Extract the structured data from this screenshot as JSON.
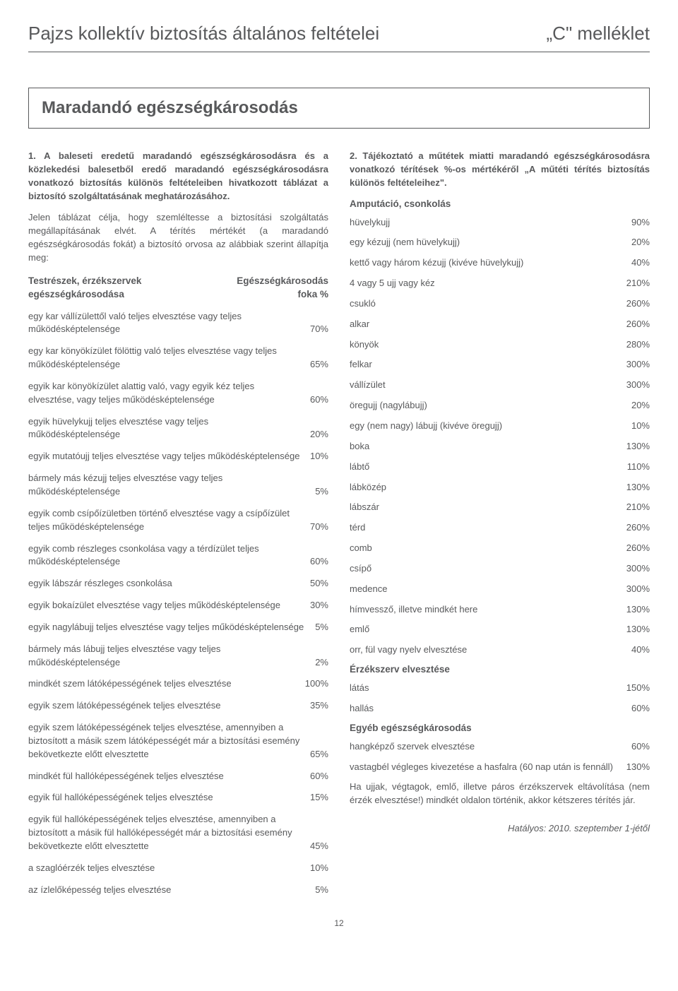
{
  "header": {
    "title": "Pajzs kollektív biztosítás általános feltételei",
    "annex": "„C\" melléklet"
  },
  "section_heading": "Maradandó egészségkárosodás",
  "left": {
    "lead": "1.  A baleseti eredetű maradandó egészségkárosodásra és a közlekedési balesetből eredő maradandó egészségkárosodásra vonatkozó biztosítás különös feltételeiben hivatkozott táblázat a biztosító szolgáltatásának meghatározásához.",
    "para": "Jelen táblázat célja, hogy szemléltesse a biztosítási szolgáltatás megállapításának elvét. A térítés mértékét (a maradandó egészségkárosodás fokát) a biztosító orvosa az alábbiak szerint állapítja meg:",
    "table_header": {
      "left1": "Testrészek, érzékszervek",
      "left2": "egészségkárosodása",
      "right1": "Egészségkárosodás",
      "right2": "foka %"
    },
    "items": [
      {
        "label": "egy kar vállízülettől való teljes elvesztése vagy teljes működésképtelensége",
        "value": "70%"
      },
      {
        "label": "egy kar könyökízület fölöttig való teljes elvesztése vagy teljes működésképtelensége",
        "value": "65%"
      },
      {
        "label": "egyik kar könyökízület alattig való, vagy egyik kéz teljes elvesztése, vagy teljes működésképtelensége",
        "value": "60%"
      },
      {
        "label": "egyik hüvelykujj teljes elvesztése vagy teljes működésképtelensége",
        "value": "20%"
      },
      {
        "label": "egyik mutatóujj teljes elvesztése vagy teljes működésképtelensége",
        "value": "10%"
      },
      {
        "label": "bármely más kézujj teljes elvesztése vagy teljes működésképtelensége",
        "value": "5%"
      },
      {
        "label": "egyik comb csípőízületben történő elvesztése vagy a csípőízület teljes működésképtelensége",
        "value": "70%"
      },
      {
        "label": "egyik comb részleges csonkolása vagy a térdízület teljes működésképtelensége",
        "value": "60%"
      },
      {
        "label": "egyik lábszár részleges csonkolása",
        "value": "50%"
      },
      {
        "label": "egyik bokaízület elvesztése vagy teljes működésképtelensége",
        "value": "30%"
      },
      {
        "label": "egyik nagylábujj teljes elvesztése vagy teljes működésképtelensége",
        "value": "5%"
      },
      {
        "label": "bármely más lábujj teljes elvesztése vagy teljes működésképtelensége",
        "value": "2%"
      },
      {
        "label": "mindkét szem látóképességének teljes elvesztése",
        "value": "100%"
      },
      {
        "label": "egyik szem látóképességének teljes elvesztése",
        "value": "35%"
      },
      {
        "label": "egyik szem látóképességének teljes elvesztése, amennyiben a biztosított a másik szem látóképességét már a biztosítási esemény bekövetkezte előtt elvesztette",
        "value": "65%"
      },
      {
        "label": "mindkét fül hallóképességének teljes elvesztése",
        "value": "60%"
      },
      {
        "label": "egyik fül hallóképességének teljes elvesztése",
        "value": "15%"
      },
      {
        "label": "egyik fül hallóképességének teljes elvesztése, amennyiben a biztosított a másik fül hallóképességét már a biztosítási esemény bekövetkezte előtt elvesztette",
        "value": "45%"
      },
      {
        "label": "a szaglóérzék teljes elvesztése",
        "value": "10%"
      },
      {
        "label": "az ízlelőképesség teljes elvesztése",
        "value": "5%"
      }
    ]
  },
  "right": {
    "lead": "2.  Tájékoztató a műtétek miatti maradandó egészségkárosodásra vonatkozó térítések %-os mértékéről „A műtéti térítés biztosítás különös feltételeihez\".",
    "sec1_title": "Amputáció, csonkolás",
    "sec1_items": [
      {
        "label": "hüvelykujj",
        "value": "90%"
      },
      {
        "label": "egy kézujj (nem hüvelykujj)",
        "value": "20%"
      },
      {
        "label": "kettő vagy három kézujj (kivéve hüvelykujj)",
        "value": "40%"
      },
      {
        "label": "4 vagy 5 ujj vagy kéz",
        "value": "210%"
      },
      {
        "label": "csukló",
        "value": "260%"
      },
      {
        "label": "alkar",
        "value": "260%"
      },
      {
        "label": "könyök",
        "value": "280%"
      },
      {
        "label": "felkar",
        "value": "300%"
      },
      {
        "label": "vállízület",
        "value": "300%"
      },
      {
        "label": "öregujj (nagylábujj)",
        "value": "20%"
      },
      {
        "label": "egy (nem nagy) lábujj (kivéve öregujj)",
        "value": "10%"
      },
      {
        "label": "boka",
        "value": "130%"
      },
      {
        "label": "lábtő",
        "value": "110%"
      },
      {
        "label": "lábközép",
        "value": "130%"
      },
      {
        "label": "lábszár",
        "value": "210%"
      },
      {
        "label": "térd",
        "value": "260%"
      },
      {
        "label": "comb",
        "value": "260%"
      },
      {
        "label": "csípő",
        "value": "300%"
      },
      {
        "label": "medence",
        "value": "300%"
      },
      {
        "label": "hímvessző, illetve mindkét here",
        "value": "130%"
      },
      {
        "label": "emlő",
        "value": "130%"
      },
      {
        "label": "orr, fül vagy nyelv elvesztése",
        "value": "40%"
      }
    ],
    "sec2_title": "Érzékszerv elvesztése",
    "sec2_items": [
      {
        "label": "látás",
        "value": "150%"
      },
      {
        "label": "hallás",
        "value": "60%"
      }
    ],
    "sec3_title": "Egyéb egészségkárosodás",
    "sec3_items": [
      {
        "label": "hangképző szervek elvesztése",
        "value": "60%"
      },
      {
        "label": "vastagbél végleges kivezetése a hasfalra (60 nap után is fennáll)",
        "value": "130%"
      }
    ],
    "note": "Ha ujjak, végtagok, emlő, illetve páros érzékszervek eltávolítása (nem érzék elvesztése!) mindkét oldalon történik, akkor kétszeres térítés jár."
  },
  "footer_date": "Hatályos: 2010. szeptember 1-jétől",
  "page_number": "12",
  "colors": {
    "text": "#58595b",
    "border": "#58595b",
    "background": "#ffffff"
  },
  "typography": {
    "body_fontsize": 13,
    "heading_fontsize": 24,
    "title_fontsize": 26
  }
}
